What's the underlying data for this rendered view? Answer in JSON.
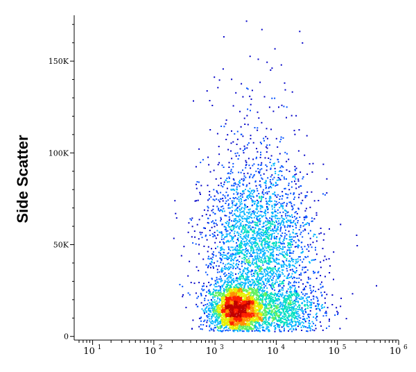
{
  "chart_data": {
    "type": "scatter",
    "title": "",
    "xlabel": "",
    "ylabel": "Side Scatter",
    "xscale": "log",
    "xlim": [
      5,
      1000000
    ],
    "ylim": [
      -2000,
      175000
    ],
    "x_ticks": [
      {
        "value": 10,
        "base": "10",
        "exp": "1"
      },
      {
        "value": 100,
        "base": "10",
        "exp": "2"
      },
      {
        "value": 1000,
        "base": "10",
        "exp": "3"
      },
      {
        "value": 10000,
        "base": "10",
        "exp": "4"
      },
      {
        "value": 100000,
        "base": "10",
        "exp": "5"
      },
      {
        "value": 1000000,
        "base": "10",
        "exp": "6"
      }
    ],
    "y_ticks": [
      {
        "value": 0,
        "label": "0"
      },
      {
        "value": 50000,
        "label": "50K"
      },
      {
        "value": 100000,
        "label": "100K"
      },
      {
        "value": 150000,
        "label": "150K"
      }
    ],
    "grid": false,
    "legend": "none",
    "density_colors": [
      "#0000c8",
      "#0050ff",
      "#00b4ff",
      "#00e0c0",
      "#60f060",
      "#e8f000",
      "#ff9000",
      "#ff2000",
      "#c00000"
    ],
    "populations": [
      {
        "name": "",
        "center_x": 2200,
        "center_y": 15000,
        "spread_log_x": 0.22,
        "spread_y": 7000,
        "count": 2600
      },
      {
        "name": "",
        "center_x": 5000,
        "center_y": 48000,
        "spread_log_x": 0.45,
        "spread_y": 22000,
        "count": 2600
      },
      {
        "name": "",
        "center_x": 12000,
        "center_y": 14000,
        "spread_log_x": 0.35,
        "spread_y": 8000,
        "count": 900
      },
      {
        "name": "",
        "center_x": 4000,
        "center_y": 95000,
        "spread_log_x": 0.4,
        "spread_y": 30000,
        "count": 250
      }
    ]
  }
}
